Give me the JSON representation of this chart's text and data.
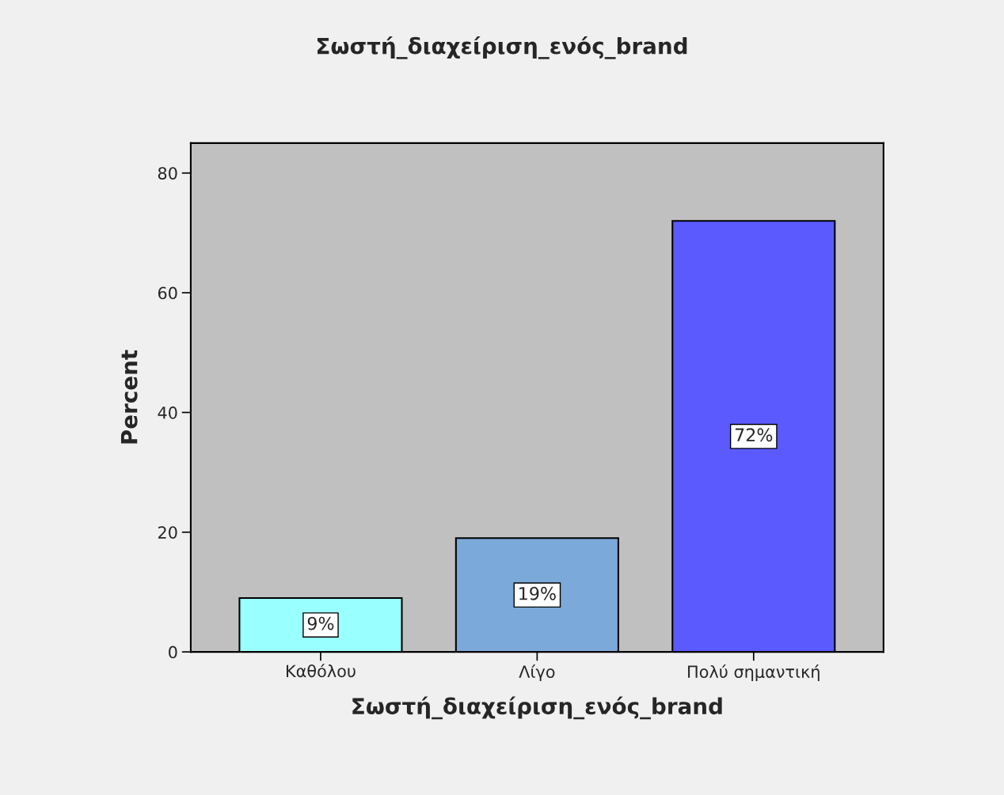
{
  "chart_data": {
    "type": "bar",
    "title": "Σωστή_διαχείριση_ενός_brand",
    "xlabel": "Σωστή_διαχείριση_ενός_brand",
    "ylabel": "Percent",
    "categories": [
      "Καθόλου",
      "Λίγο",
      "Πολύ σημαντική"
    ],
    "values": [
      9,
      19,
      72
    ],
    "colors": [
      "#99ffff",
      "#7ba9d9",
      "#5a5aff"
    ],
    "value_labels": [
      "9%",
      "19%",
      "72%"
    ],
    "ylim": [
      0,
      85
    ],
    "yticks": [
      0,
      20,
      40,
      60,
      80
    ],
    "grid": false
  }
}
